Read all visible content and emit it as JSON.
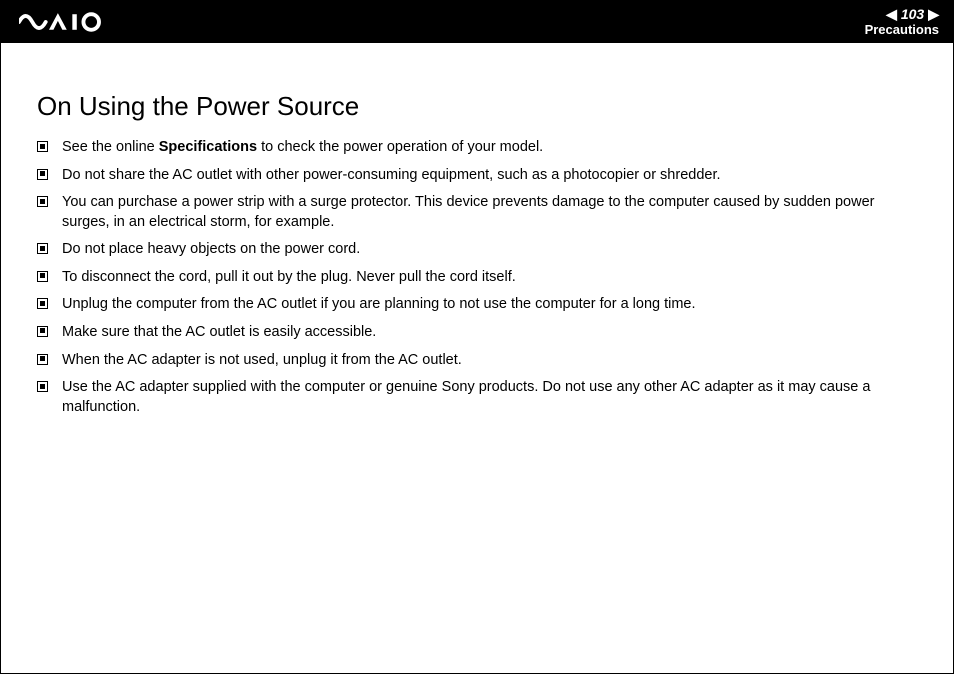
{
  "header": {
    "page_number": "103",
    "section": "Precautions"
  },
  "title": "On Using the Power Source",
  "bullets": [
    {
      "pre": "See the online ",
      "bold": "Specifications",
      "post": " to check the power operation of your model."
    },
    {
      "text": "Do not share the AC outlet with other power-consuming equipment, such as a photocopier or shredder."
    },
    {
      "text": "You can purchase a power strip with a surge protector. This device prevents damage to the computer caused by sudden power surges, in an electrical storm, for example."
    },
    {
      "text": "Do not place heavy objects on the power cord."
    },
    {
      "text": "To disconnect the cord, pull it out by the plug. Never pull the cord itself."
    },
    {
      "text": "Unplug the computer from the AC outlet if you are planning to not use the computer for a long time."
    },
    {
      "text": "Make sure that the AC outlet is easily accessible."
    },
    {
      "text": "When the AC adapter is not used, unplug it from the AC outlet."
    },
    {
      "text": "Use the AC adapter supplied with the computer or genuine Sony products. Do not use any other AC adapter as it may cause a malfunction."
    }
  ]
}
